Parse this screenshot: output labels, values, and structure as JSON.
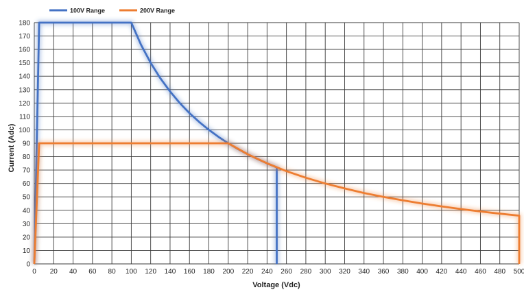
{
  "chart_data": {
    "type": "line",
    "title": "",
    "xlabel": "Voltage (Vdc)",
    "ylabel": "Current (Adc)",
    "xlim": [
      0,
      500
    ],
    "ylim": [
      0,
      180
    ],
    "x_ticks": [
      0,
      20,
      40,
      60,
      80,
      100,
      120,
      140,
      160,
      180,
      200,
      220,
      240,
      260,
      280,
      300,
      320,
      340,
      360,
      380,
      400,
      420,
      440,
      460,
      480,
      500
    ],
    "y_ticks": [
      0,
      10,
      20,
      30,
      40,
      50,
      60,
      70,
      80,
      90,
      100,
      110,
      120,
      130,
      140,
      150,
      160,
      170,
      180
    ],
    "grid": true,
    "legend_position": "top-left",
    "series": [
      {
        "name": "100V Range",
        "color": "#4472c4",
        "points": [
          [
            0,
            0
          ],
          [
            5,
            180
          ],
          [
            100,
            180
          ],
          [
            110,
            163.6
          ],
          [
            120,
            150
          ],
          [
            130,
            138.5
          ],
          [
            140,
            128.6
          ],
          [
            150,
            120
          ],
          [
            160,
            112.5
          ],
          [
            170,
            105.9
          ],
          [
            180,
            100
          ],
          [
            190,
            94.7
          ],
          [
            200,
            90
          ],
          [
            210,
            85.7
          ],
          [
            220,
            81.8
          ],
          [
            230,
            78.3
          ],
          [
            240,
            75
          ],
          [
            250,
            72
          ],
          [
            250,
            0
          ]
        ]
      },
      {
        "name": "200V Range",
        "color": "#ed7d31",
        "points": [
          [
            0,
            0
          ],
          [
            5,
            90
          ],
          [
            200,
            90
          ],
          [
            220,
            81.8
          ],
          [
            240,
            75
          ],
          [
            260,
            69.2
          ],
          [
            280,
            64.3
          ],
          [
            300,
            60
          ],
          [
            320,
            56.3
          ],
          [
            340,
            52.9
          ],
          [
            360,
            50
          ],
          [
            380,
            47.4
          ],
          [
            400,
            45
          ],
          [
            420,
            42.9
          ],
          [
            440,
            40.9
          ],
          [
            460,
            39.1
          ],
          [
            480,
            37.5
          ],
          [
            500,
            36
          ],
          [
            500,
            0
          ]
        ]
      }
    ]
  }
}
